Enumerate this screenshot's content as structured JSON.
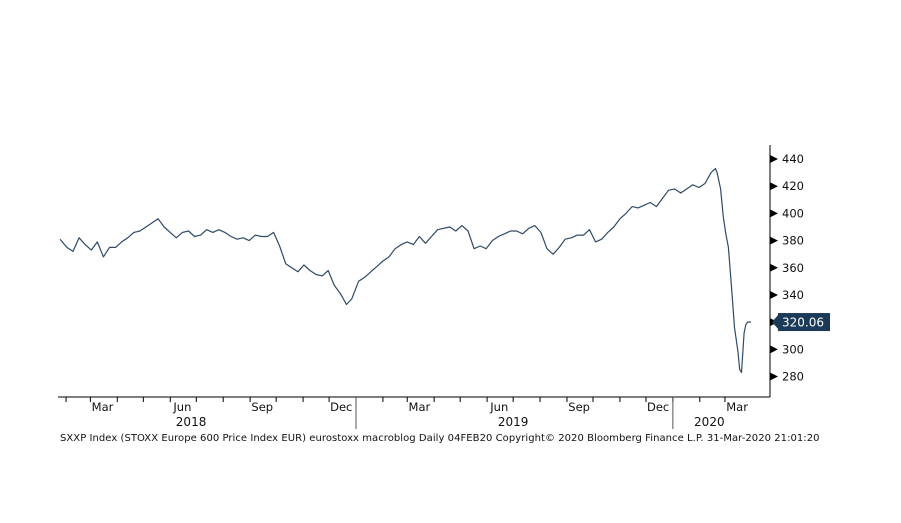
{
  "chart_data": {
    "type": "line",
    "series": [
      {
        "x": [
          "2018-01-25",
          "2018-02-02",
          "2018-02-09",
          "2018-02-16",
          "2018-02-23",
          "2018-03-02",
          "2018-03-09",
          "2018-03-16",
          "2018-03-23",
          "2018-03-30",
          "2018-04-06",
          "2018-04-13",
          "2018-04-20",
          "2018-04-27",
          "2018-05-04",
          "2018-05-11",
          "2018-05-18",
          "2018-05-25",
          "2018-06-01",
          "2018-06-08",
          "2018-06-15",
          "2018-06-22",
          "2018-06-29",
          "2018-07-06",
          "2018-07-13",
          "2018-07-20",
          "2018-07-27",
          "2018-08-03",
          "2018-08-10",
          "2018-08-17",
          "2018-08-24",
          "2018-08-31",
          "2018-09-07",
          "2018-09-14",
          "2018-09-21",
          "2018-09-28",
          "2018-10-05",
          "2018-10-12",
          "2018-10-19",
          "2018-10-26",
          "2018-11-02",
          "2018-11-09",
          "2018-11-16",
          "2018-11-23",
          "2018-11-30",
          "2018-12-07",
          "2018-12-14",
          "2018-12-21",
          "2018-12-27",
          "2019-01-04",
          "2019-01-11",
          "2019-01-18",
          "2019-01-25",
          "2019-02-01",
          "2019-02-08",
          "2019-02-15",
          "2019-02-22",
          "2019-03-01",
          "2019-03-08",
          "2019-03-15",
          "2019-03-22",
          "2019-03-29",
          "2019-04-05",
          "2019-04-12",
          "2019-04-19",
          "2019-04-26",
          "2019-05-03",
          "2019-05-10",
          "2019-05-17",
          "2019-05-24",
          "2019-05-31",
          "2019-06-07",
          "2019-06-14",
          "2019-06-21",
          "2019-06-28",
          "2019-07-05",
          "2019-07-12",
          "2019-07-19",
          "2019-07-26",
          "2019-08-02",
          "2019-08-09",
          "2019-08-16",
          "2019-08-23",
          "2019-08-30",
          "2019-09-06",
          "2019-09-13",
          "2019-09-20",
          "2019-09-27",
          "2019-10-04",
          "2019-10-11",
          "2019-10-18",
          "2019-10-25",
          "2019-11-01",
          "2019-11-08",
          "2019-11-15",
          "2019-11-22",
          "2019-11-29",
          "2019-12-06",
          "2019-12-13",
          "2019-12-20",
          "2019-12-27",
          "2020-01-03",
          "2020-01-10",
          "2020-01-17",
          "2020-01-24",
          "2020-01-31",
          "2020-02-07",
          "2020-02-14",
          "2020-02-19",
          "2020-02-21",
          "2020-02-25",
          "2020-02-28",
          "2020-03-02",
          "2020-03-05",
          "2020-03-09",
          "2020-03-12",
          "2020-03-16",
          "2020-03-18",
          "2020-03-20",
          "2020-03-23",
          "2020-03-25",
          "2020-03-27",
          "2020-03-31"
        ],
        "y": [
          381,
          375,
          372,
          382,
          377,
          373,
          379,
          368,
          375,
          375,
          379,
          382,
          386,
          387,
          390,
          393,
          396,
          390,
          386,
          382,
          386,
          387,
          383,
          384,
          388,
          386,
          388,
          386,
          383,
          381,
          382,
          380,
          384,
          383,
          383,
          386,
          376,
          363,
          360,
          357,
          362,
          358,
          355,
          354,
          358,
          347,
          341,
          333,
          337,
          350,
          353,
          357,
          361,
          365,
          368,
          374,
          377,
          379,
          377,
          383,
          378,
          383,
          388,
          389,
          390,
          387,
          391,
          387,
          374,
          376,
          374,
          380,
          383,
          385,
          387,
          387,
          385,
          389,
          391,
          386,
          374,
          370,
          375,
          381,
          382,
          384,
          384,
          388,
          379,
          381,
          386,
          390,
          396,
          400,
          405,
          404,
          406,
          408,
          405,
          411,
          417,
          418,
          415,
          418,
          421,
          419,
          422,
          430,
          433,
          430,
          418,
          398,
          385,
          375,
          342,
          316,
          298,
          285,
          283,
          312,
          318,
          320,
          320.06
        ]
      }
    ],
    "x_ticks": [
      "Mar",
      "Jun",
      "Sep",
      "Dec",
      "Mar",
      "Jun",
      "Sep",
      "Dec",
      "Mar"
    ],
    "x_years": [
      "2018",
      "2019",
      "2020"
    ],
    "yticks": [
      280,
      300,
      320,
      340,
      360,
      380,
      400,
      420,
      440
    ],
    "ylim": [
      268,
      448
    ],
    "y_axis_side": "right",
    "grid": false,
    "last_value_label": "320.06",
    "line_color": "#2f4a66",
    "label_box_color": "#1b3a57",
    "title": "",
    "xlabel": "",
    "ylabel": ""
  },
  "footer": {
    "text": "SXXP Index (STOXX Europe 600 Price Index EUR) eurostoxx macroblog  Daily 04FEB20   Copyright© 2020 Bloomberg Finance L.P.   31-Mar-2020 21:01:20"
  }
}
